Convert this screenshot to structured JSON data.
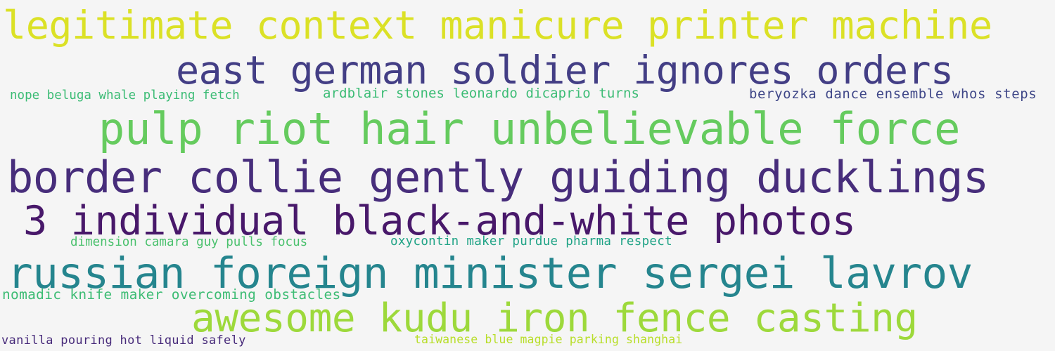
{
  "word_cloud": {
    "background_color": "#f5f5f5",
    "phrases": [
      {
        "text": "legitimate context manicure printer machine",
        "color": "#dbe126"
      },
      {
        "text": "east german soldier ignores orders",
        "color": "#433e85"
      },
      {
        "text": "nope beluga whale playing fetch",
        "color": "#3cbc75"
      },
      {
        "text": "ardblair stones leonardo dicaprio turns",
        "color": "#3cbc75"
      },
      {
        "text": "beryozka dance ensemble whos steps",
        "color": "#3f4788"
      },
      {
        "text": "pulp riot hair unbelievable force",
        "color": "#65cb5e"
      },
      {
        "text": "border collie gently guiding ducklings",
        "color": "#472d7b"
      },
      {
        "text": "3 individual black-and-white photos",
        "color": "#48186a"
      },
      {
        "text": "dimension camara guy pulls focus",
        "color": "#4ac16d"
      },
      {
        "text": "oxycontin maker purdue pharma respect",
        "color": "#20a386"
      },
      {
        "text": "russian foreign minister sergei lavrov",
        "color": "#25858e"
      },
      {
        "text": "nomadic knife maker overcoming obstacles",
        "color": "#3dbc74"
      },
      {
        "text": "awesome kudu iron fence casting",
        "color": "#9dd93b"
      },
      {
        "text": "vanilla pouring hot liquid safely",
        "color": "#472a7a"
      },
      {
        "text": "taiwanese blue magpie parking shanghai",
        "color": "#b8de29"
      }
    ]
  }
}
